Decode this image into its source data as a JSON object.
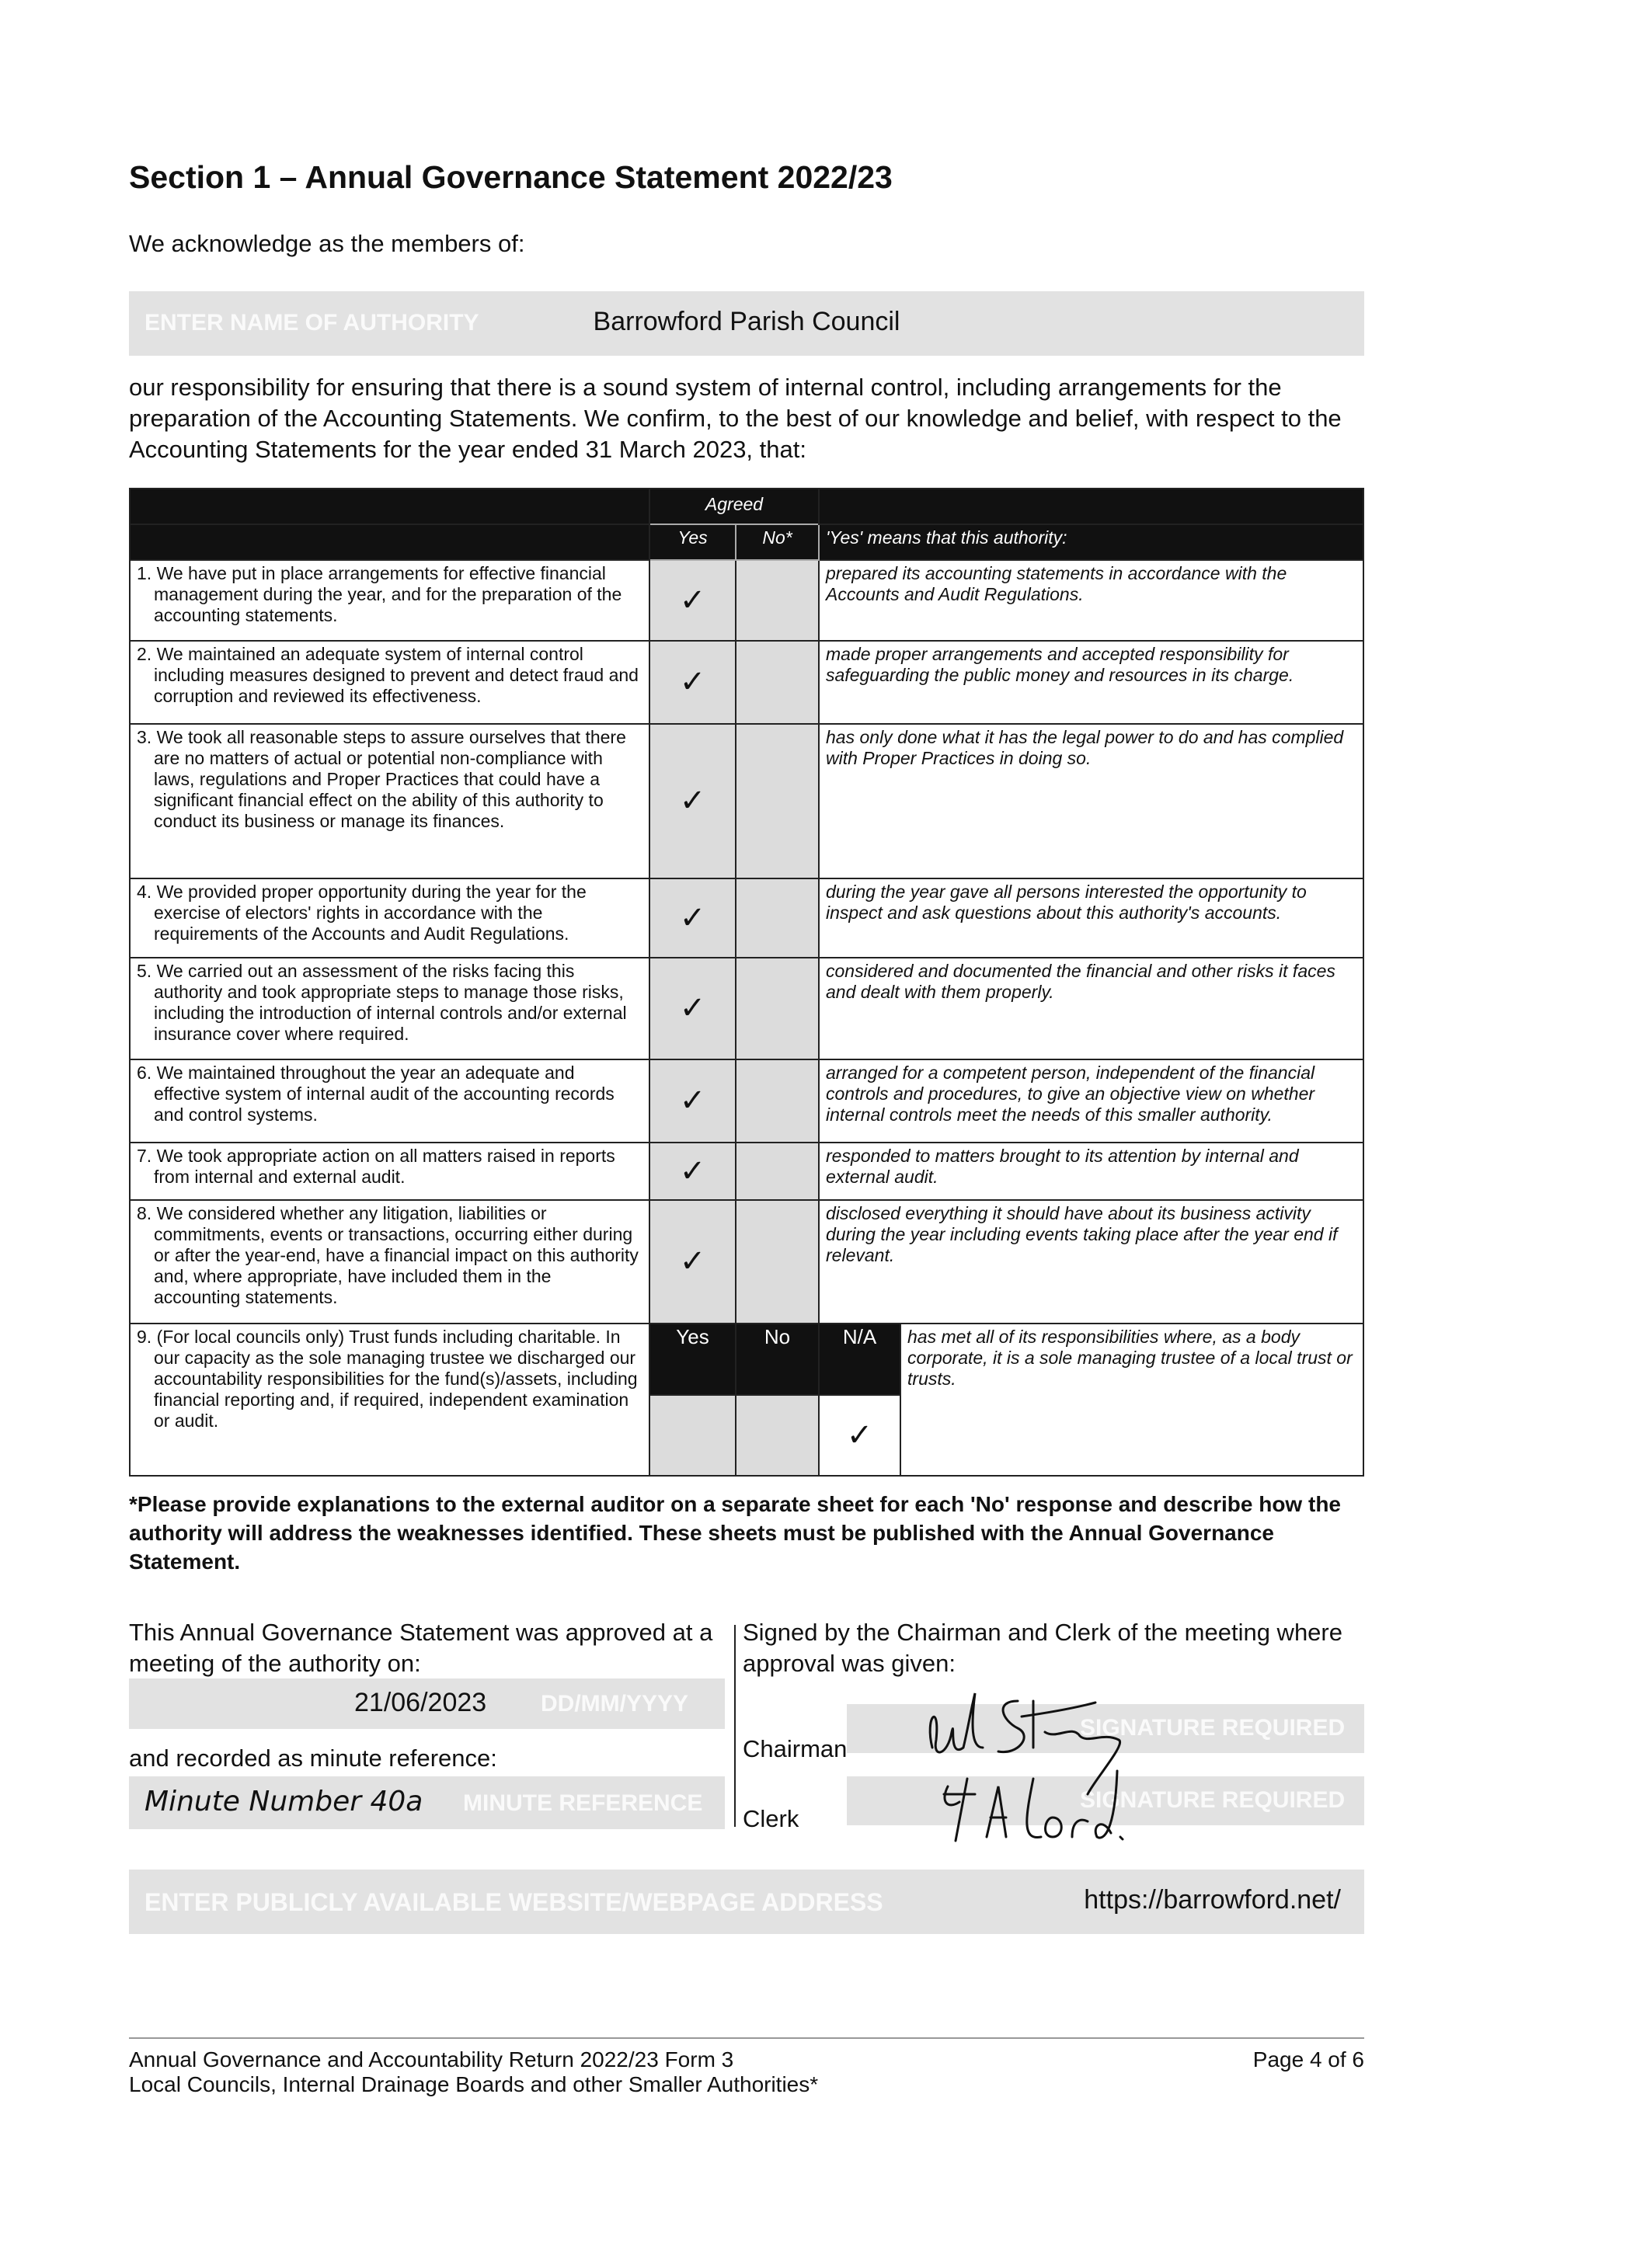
{
  "title": "Section 1 – Annual Governance Statement 2022/23",
  "intro": "We acknowledge as the members of:",
  "authority": {
    "value": "Barrowford Parish Council",
    "placeholder": "ENTER NAME OF AUTHORITY"
  },
  "paragraph": "our responsibility for ensuring that there is a sound system of internal control, including arrangements for the preparation of the Accounting Statements. We confirm, to the best of our knowledge and belief, with respect to the Accounting Statements for the year ended 31 March 2023, that:",
  "table": {
    "agreed": "Agreed",
    "yes": "Yes",
    "no": "No*",
    "means": "'Yes' means that this authority:",
    "check": "✓",
    "rows": [
      {
        "statement": "1. We have put in place arrangements for effective financial management during the year, and for the preparation of the accounting statements.",
        "answer": "yes",
        "meaning": "prepared its accounting statements in accordance with the Accounts and Audit Regulations."
      },
      {
        "statement": "2. We maintained an adequate system of internal control including measures designed to prevent and detect fraud and corruption and reviewed its effectiveness.",
        "answer": "yes",
        "meaning": "made proper arrangements and accepted responsibility for safeguarding the public money and resources in its charge."
      },
      {
        "statement": "3. We took all reasonable steps to assure ourselves that there are no matters of actual or potential non-compliance with laws, regulations and Proper Practices that could have a significant financial effect on the ability of this authority to conduct its business or manage its finances.",
        "answer": "yes",
        "meaning": "has only done what it has the legal power to do and has complied with Proper Practices in doing so."
      },
      {
        "statement": "4. We provided proper opportunity during the year for the exercise of electors' rights in accordance with the requirements of the Accounts and Audit Regulations.",
        "answer": "yes",
        "meaning": "during the year gave all persons interested the opportunity to inspect and ask questions about this authority's accounts."
      },
      {
        "statement": "5. We carried out an assessment of the risks facing this authority and took appropriate steps to manage those risks, including the introduction of internal controls and/or external insurance cover where required.",
        "answer": "yes",
        "meaning": "considered and documented the financial and other risks it faces and dealt with them properly."
      },
      {
        "statement": "6. We maintained throughout the year an adequate and effective system of internal audit of the accounting records and control systems.",
        "answer": "yes",
        "meaning": "arranged for a competent person, independent of the financial controls and procedures, to give an objective view on whether internal controls meet the needs of this smaller authority."
      },
      {
        "statement": "7. We took appropriate action on all matters raised in reports from internal and external audit.",
        "answer": "yes",
        "meaning": "responded to matters brought to its attention by internal and external audit."
      },
      {
        "statement": "8. We considered whether any litigation, liabilities or commitments, events or transactions, occurring either during or after the year-end, have a financial impact on this authority and, where appropriate, have included them in the accounting statements.",
        "answer": "yes",
        "meaning": "disclosed everything it should have about its business activity during the year including events taking place after the year end if relevant."
      }
    ],
    "row9": {
      "statement": "9. (For local councils only) Trust funds including charitable. In our capacity as the sole managing trustee we discharged our accountability responsibilities for the fund(s)/assets, including financial reporting and, if required, independent examination or audit.",
      "yes": "Yes",
      "no": "No",
      "na": "N/A",
      "answer": "na",
      "meaning": "has met all of its responsibilities where, as a body corporate, it is a sole managing trustee of a local trust or trusts."
    }
  },
  "footnote": "*Please provide explanations to the external auditor on a separate sheet for each 'No' response and describe how the authority will address the weaknesses identified. These sheets must be published with the Annual Governance Statement.",
  "approval": {
    "approved_text": "This Annual Governance Statement was approved at a meeting of the authority on:",
    "date": "21/06/2023",
    "date_placeholder": "DD/MM/YYYY",
    "minute_text": "and recorded as minute reference:",
    "minute": "Minute Number 40a",
    "minute_placeholder": "MINUTE REFERENCE",
    "signed_text": "Signed by the Chairman and Clerk of the meeting where approval was given:",
    "chairman": "Chairman",
    "clerk": "Clerk",
    "sig_placeholder": "SIGNATURE REQUIRED"
  },
  "website": {
    "value": "https://barrowford.net/",
    "placeholder": "ENTER PUBLICLY AVAILABLE WEBSITE/WEBPAGE ADDRESS"
  },
  "footer": {
    "line1": "Annual Governance and Accountability Return 2022/23 Form 3",
    "line2": "Local Councils, Internal Drainage Boards and other Smaller Authorities*",
    "page": "Page 4 of 6"
  }
}
